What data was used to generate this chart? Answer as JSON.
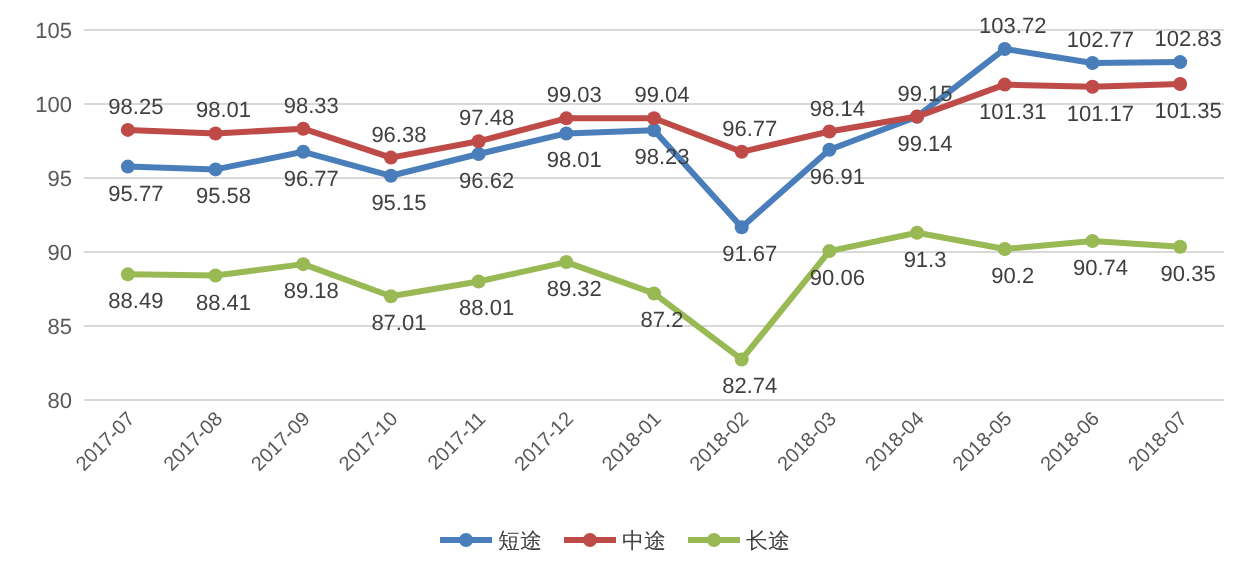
{
  "chart_data": {
    "type": "line",
    "categories": [
      "2017-07",
      "2017-08",
      "2017-09",
      "2017-10",
      "2017-11",
      "2017-12",
      "2018-01",
      "2018-02",
      "2018-03",
      "2018-04",
      "2018-05",
      "2018-06",
      "2018-07"
    ],
    "series": [
      {
        "name": "短途",
        "color": "#4a7ebb",
        "values": [
          95.77,
          95.58,
          96.77,
          95.15,
          96.62,
          98.01,
          98.23,
          91.67,
          96.91,
          99.14,
          103.72,
          102.77,
          102.83
        ]
      },
      {
        "name": "中途",
        "color": "#be4b48",
        "values": [
          98.25,
          98.01,
          98.33,
          96.38,
          97.48,
          99.03,
          99.04,
          96.77,
          98.14,
          99.15,
          101.31,
          101.17,
          101.35
        ]
      },
      {
        "name": "长途",
        "color": "#98b954",
        "values": [
          88.49,
          88.41,
          89.18,
          87.01,
          88.01,
          89.32,
          87.2,
          82.74,
          90.06,
          91.3,
          90.2,
          90.74,
          90.35
        ]
      }
    ],
    "ylim": [
      80,
      105
    ],
    "yticks": [
      80,
      85,
      90,
      95,
      100,
      105
    ],
    "grid": "y",
    "legend": "bottom",
    "marker": "circle",
    "data_labels": true
  }
}
